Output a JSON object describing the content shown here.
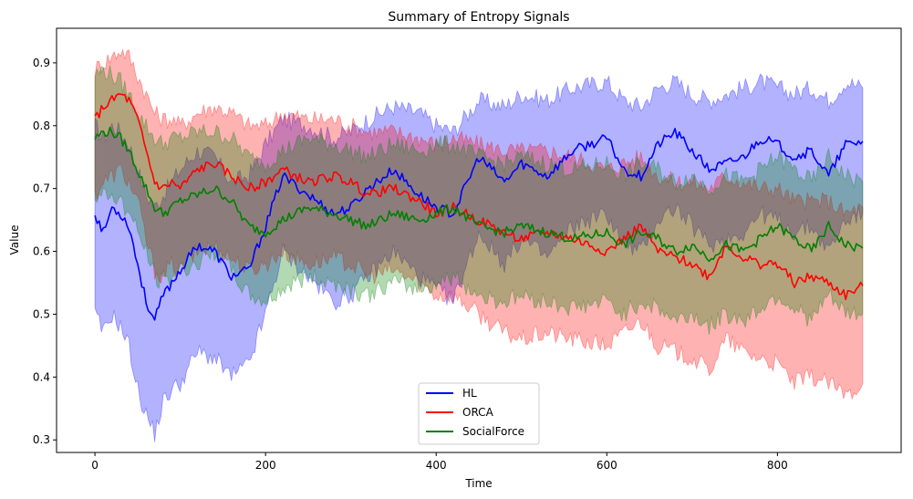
{
  "chart_data": {
    "type": "line",
    "title": "Summary of Entropy Signals",
    "xlabel": "Time",
    "ylabel": "Value",
    "xlim": [
      -45,
      945
    ],
    "ylim": [
      0.28,
      0.955
    ],
    "xticks": [
      0,
      200,
      400,
      600,
      800
    ],
    "yticks": [
      0.3,
      0.4,
      0.5,
      0.6,
      0.7,
      0.8,
      0.9
    ],
    "grid": false,
    "legend_position": "bottom-center",
    "series": [
      {
        "name": "HL",
        "color": "#0000ff",
        "band_opacity": 0.3,
        "x": [
          0,
          10,
          20,
          30,
          40,
          50,
          60,
          70,
          80,
          90,
          100,
          120,
          140,
          160,
          180,
          200,
          220,
          250,
          280,
          300,
          320,
          350,
          380,
          400,
          420,
          450,
          480,
          500,
          530,
          560,
          600,
          620,
          640,
          660,
          680,
          700,
          720,
          740,
          760,
          780,
          800,
          820,
          840,
          860,
          880,
          900
        ],
        "mean": [
          0.66,
          0.63,
          0.67,
          0.66,
          0.64,
          0.58,
          0.52,
          0.49,
          0.53,
          0.55,
          0.57,
          0.61,
          0.6,
          0.56,
          0.57,
          0.64,
          0.72,
          0.69,
          0.66,
          0.67,
          0.7,
          0.73,
          0.69,
          0.67,
          0.66,
          0.75,
          0.71,
          0.74,
          0.72,
          0.76,
          0.78,
          0.73,
          0.72,
          0.77,
          0.79,
          0.76,
          0.73,
          0.74,
          0.75,
          0.78,
          0.77,
          0.75,
          0.76,
          0.72,
          0.77,
          0.775
        ],
        "upper": [
          0.8,
          0.78,
          0.8,
          0.79,
          0.77,
          0.73,
          0.69,
          0.67,
          0.69,
          0.71,
          0.73,
          0.76,
          0.75,
          0.71,
          0.72,
          0.77,
          0.81,
          0.8,
          0.78,
          0.79,
          0.81,
          0.83,
          0.82,
          0.8,
          0.79,
          0.84,
          0.83,
          0.85,
          0.84,
          0.86,
          0.87,
          0.84,
          0.83,
          0.86,
          0.87,
          0.85,
          0.84,
          0.85,
          0.86,
          0.87,
          0.86,
          0.85,
          0.86,
          0.84,
          0.87,
          0.86
        ],
        "lower": [
          0.5,
          0.47,
          0.5,
          0.48,
          0.45,
          0.38,
          0.34,
          0.31,
          0.36,
          0.38,
          0.39,
          0.44,
          0.43,
          0.4,
          0.42,
          0.5,
          0.6,
          0.56,
          0.52,
          0.53,
          0.56,
          0.6,
          0.56,
          0.54,
          0.52,
          0.63,
          0.58,
          0.62,
          0.59,
          0.64,
          0.66,
          0.61,
          0.6,
          0.65,
          0.67,
          0.64,
          0.61,
          0.62,
          0.63,
          0.66,
          0.65,
          0.63,
          0.64,
          0.6,
          0.65,
          0.66
        ]
      },
      {
        "name": "ORCA",
        "color": "#ff0000",
        "band_opacity": 0.3,
        "x": [
          0,
          10,
          20,
          30,
          40,
          50,
          60,
          70,
          80,
          90,
          100,
          120,
          140,
          160,
          180,
          200,
          220,
          250,
          280,
          300,
          320,
          350,
          380,
          400,
          420,
          450,
          480,
          500,
          530,
          560,
          600,
          620,
          640,
          660,
          680,
          700,
          720,
          740,
          760,
          780,
          800,
          820,
          840,
          860,
          880,
          900
        ],
        "mean": [
          0.81,
          0.83,
          0.84,
          0.85,
          0.84,
          0.81,
          0.76,
          0.71,
          0.7,
          0.71,
          0.7,
          0.73,
          0.74,
          0.72,
          0.7,
          0.71,
          0.73,
          0.71,
          0.72,
          0.71,
          0.69,
          0.7,
          0.68,
          0.66,
          0.67,
          0.65,
          0.63,
          0.62,
          0.63,
          0.62,
          0.6,
          0.62,
          0.64,
          0.6,
          0.59,
          0.58,
          0.56,
          0.61,
          0.59,
          0.58,
          0.58,
          0.55,
          0.56,
          0.55,
          0.53,
          0.545
        ],
        "upper": [
          0.89,
          0.9,
          0.91,
          0.92,
          0.91,
          0.88,
          0.85,
          0.82,
          0.81,
          0.81,
          0.8,
          0.82,
          0.83,
          0.82,
          0.8,
          0.8,
          0.82,
          0.81,
          0.81,
          0.8,
          0.79,
          0.79,
          0.78,
          0.77,
          0.78,
          0.77,
          0.76,
          0.76,
          0.76,
          0.75,
          0.73,
          0.74,
          0.75,
          0.72,
          0.71,
          0.71,
          0.7,
          0.72,
          0.71,
          0.7,
          0.7,
          0.68,
          0.68,
          0.68,
          0.66,
          0.67
        ],
        "lower": [
          0.69,
          0.71,
          0.72,
          0.73,
          0.71,
          0.68,
          0.62,
          0.57,
          0.56,
          0.58,
          0.57,
          0.6,
          0.61,
          0.59,
          0.57,
          0.58,
          0.6,
          0.58,
          0.59,
          0.58,
          0.56,
          0.57,
          0.55,
          0.53,
          0.53,
          0.5,
          0.47,
          0.46,
          0.47,
          0.46,
          0.45,
          0.47,
          0.49,
          0.45,
          0.44,
          0.43,
          0.41,
          0.46,
          0.44,
          0.43,
          0.42,
          0.39,
          0.4,
          0.39,
          0.37,
          0.39
        ]
      },
      {
        "name": "SocialForce",
        "color": "#008000",
        "band_opacity": 0.3,
        "x": [
          0,
          10,
          20,
          30,
          40,
          50,
          60,
          70,
          80,
          90,
          100,
          120,
          140,
          160,
          180,
          200,
          220,
          250,
          280,
          300,
          320,
          350,
          380,
          400,
          420,
          450,
          480,
          500,
          530,
          560,
          600,
          620,
          640,
          660,
          680,
          700,
          720,
          740,
          760,
          780,
          800,
          820,
          840,
          860,
          880,
          900
        ],
        "mean": [
          0.78,
          0.79,
          0.79,
          0.78,
          0.76,
          0.73,
          0.7,
          0.67,
          0.66,
          0.67,
          0.68,
          0.69,
          0.7,
          0.68,
          0.64,
          0.63,
          0.65,
          0.67,
          0.66,
          0.65,
          0.64,
          0.66,
          0.65,
          0.66,
          0.67,
          0.64,
          0.63,
          0.64,
          0.63,
          0.62,
          0.63,
          0.61,
          0.63,
          0.62,
          0.6,
          0.61,
          0.59,
          0.61,
          0.6,
          0.62,
          0.64,
          0.62,
          0.6,
          0.64,
          0.61,
          0.605
        ],
        "upper": [
          0.88,
          0.89,
          0.88,
          0.87,
          0.85,
          0.82,
          0.8,
          0.78,
          0.77,
          0.78,
          0.78,
          0.79,
          0.79,
          0.78,
          0.75,
          0.74,
          0.76,
          0.78,
          0.77,
          0.76,
          0.75,
          0.77,
          0.76,
          0.77,
          0.77,
          0.75,
          0.74,
          0.75,
          0.74,
          0.73,
          0.74,
          0.72,
          0.74,
          0.73,
          0.71,
          0.72,
          0.7,
          0.72,
          0.71,
          0.73,
          0.75,
          0.73,
          0.71,
          0.75,
          0.72,
          0.71
        ],
        "lower": [
          0.68,
          0.69,
          0.69,
          0.68,
          0.66,
          0.63,
          0.6,
          0.56,
          0.55,
          0.56,
          0.57,
          0.58,
          0.6,
          0.57,
          0.53,
          0.52,
          0.54,
          0.56,
          0.55,
          0.54,
          0.53,
          0.55,
          0.54,
          0.55,
          0.56,
          0.53,
          0.52,
          0.53,
          0.52,
          0.51,
          0.52,
          0.5,
          0.52,
          0.51,
          0.49,
          0.5,
          0.48,
          0.5,
          0.49,
          0.51,
          0.53,
          0.51,
          0.49,
          0.53,
          0.5,
          0.5
        ]
      }
    ]
  }
}
